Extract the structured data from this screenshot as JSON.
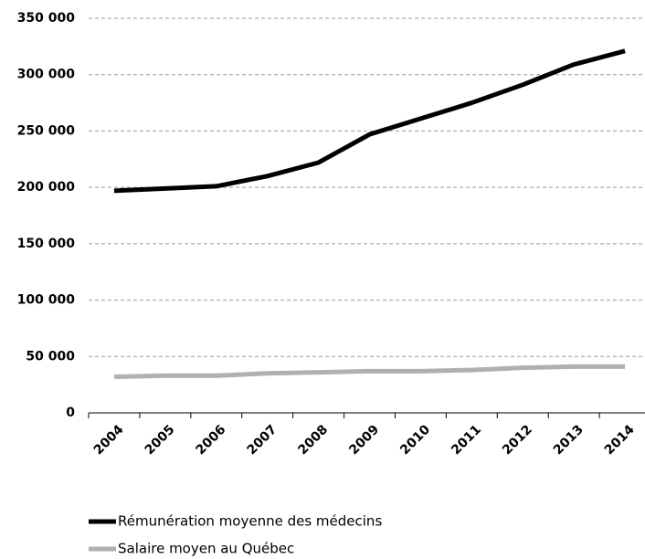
{
  "chart_data": {
    "type": "line",
    "categories": [
      "2004",
      "2005",
      "2006",
      "2007",
      "2008",
      "2009",
      "2010",
      "2011",
      "2012",
      "2013",
      "2014"
    ],
    "series": [
      {
        "name": "Rémunération moyenne des médecins",
        "color": "#000000",
        "values": [
          197000,
          199000,
          201000,
          210000,
          222000,
          247000,
          261000,
          275000,
          291000,
          309000,
          321000
        ]
      },
      {
        "name": "Salaire moyen au Québec",
        "color": "#b0b0b0",
        "values": [
          32000,
          33000,
          33000,
          35000,
          36000,
          37000,
          37000,
          38000,
          40000,
          41000,
          41000
        ]
      }
    ],
    "ylim": [
      0,
      350000
    ],
    "yticks": [
      0,
      {
        "value": 50000,
        "label": "50 000"
      },
      {
        "value": 100000,
        "label": "100 000"
      },
      {
        "value": 150000,
        "label": "150 000"
      },
      {
        "value": 200000,
        "label": "200 000"
      },
      {
        "value": 250000,
        "label": "250 000"
      },
      {
        "value": 300000,
        "label": "300 000"
      },
      {
        "value": 350000,
        "label": "350 000"
      }
    ],
    "grid": true
  }
}
